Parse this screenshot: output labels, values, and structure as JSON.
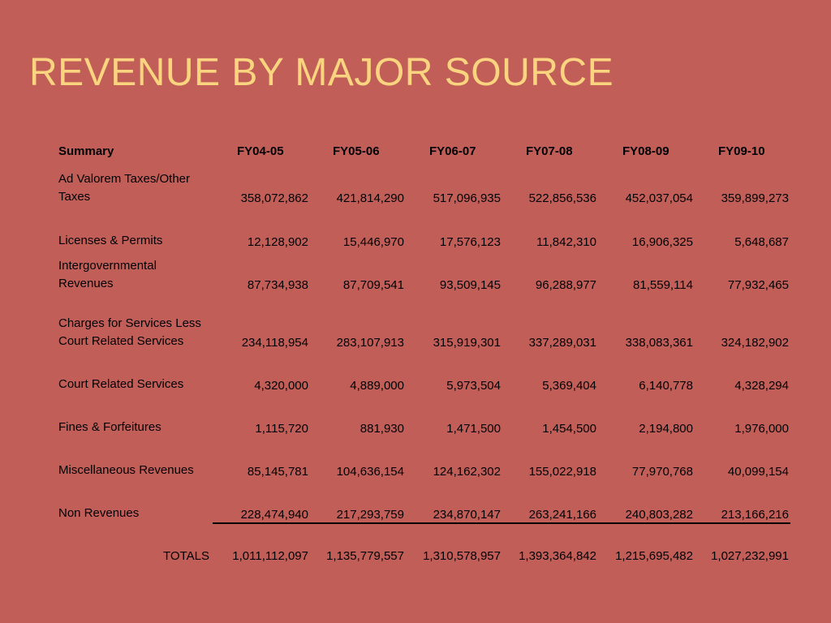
{
  "title": "REVENUE BY MAJOR SOURCE",
  "table": {
    "columns": [
      "Summary",
      "FY04-05",
      "FY05-06",
      "FY06-07",
      "FY07-08",
      "FY08-09",
      "FY09-10"
    ],
    "rows": [
      {
        "label": "Ad Valorem Taxes/Other Taxes",
        "values": [
          "358,072,862",
          "421,814,290",
          "517,096,935",
          "522,856,536",
          "452,037,054",
          "359,899,273"
        ]
      },
      {
        "label": "Licenses & Permits",
        "values": [
          "12,128,902",
          "15,446,970",
          "17,576,123",
          "11,842,310",
          "16,906,325",
          "5,648,687"
        ]
      },
      {
        "label": "Intergovernmental Revenues",
        "values": [
          "87,734,938",
          "87,709,541",
          "93,509,145",
          "96,288,977",
          "81,559,114",
          "77,932,465"
        ]
      },
      {
        "label": "Charges for Services Less Court Related Services",
        "values": [
          "234,118,954",
          "283,107,913",
          "315,919,301",
          "337,289,031",
          "338,083,361",
          "324,182,902"
        ]
      },
      {
        "label": "Court Related Services",
        "values": [
          "4,320,000",
          "4,889,000",
          "5,973,504",
          "5,369,404",
          "6,140,778",
          "4,328,294"
        ]
      },
      {
        "label": "Fines & Forfeitures",
        "values": [
          "1,115,720",
          "881,930",
          "1,471,500",
          "1,454,500",
          "2,194,800",
          "1,976,000"
        ]
      },
      {
        "label": "Miscellaneous Revenues",
        "values": [
          "85,145,781",
          "104,636,154",
          "124,162,302",
          "155,022,918",
          "77,970,768",
          "40,099,154"
        ]
      },
      {
        "label": "Non Revenues",
        "values": [
          "228,474,940",
          "217,293,759",
          "234,870,147",
          "263,241,166",
          "240,803,282",
          "213,166,216"
        ]
      }
    ],
    "totals": {
      "label": "TOTALS",
      "values": [
        "1,011,112,097",
        "1,135,779,557",
        "1,310,578,957",
        "1,393,364,842",
        "1,215,695,482",
        "1,027,232,991"
      ]
    }
  },
  "colors": {
    "background": "#C25E58",
    "title": "#FAD47E",
    "text": "#000000"
  }
}
